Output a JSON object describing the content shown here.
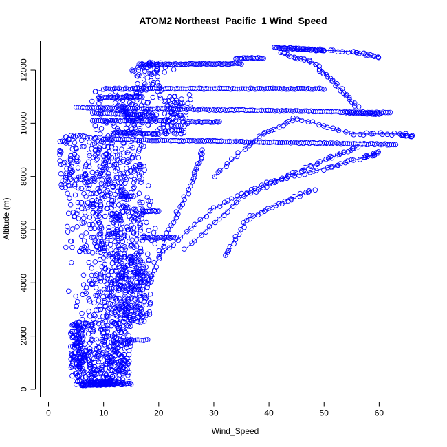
{
  "chart_data": {
    "type": "scatter",
    "title": "ATOM2 Northeast_Pacific_1 Wind_Speed",
    "xlabel": "Wind_Speed",
    "ylabel": "Altitude (m)",
    "xlim": [
      -1.5,
      68.5
    ],
    "ylim": [
      -300,
      13100
    ],
    "x_ticks": [
      0,
      10,
      20,
      30,
      40,
      50,
      60
    ],
    "y_ticks": [
      0,
      2000,
      4000,
      6000,
      8000,
      10000,
      12000
    ],
    "grid": false,
    "marker": "open-circle",
    "color": "#0000ff",
    "series": [
      {
        "name": "",
        "clusters": [
          {
            "x_range": [
              5,
              15
            ],
            "y_range": [
              150,
              300
            ],
            "density": 90
          },
          {
            "x_range": [
              4,
              15
            ],
            "y_range": [
              300,
              2500
            ],
            "density": 420
          },
          {
            "x_range": [
              2,
              19
            ],
            "y_range": [
              2500,
              5000
            ],
            "density": 380
          },
          {
            "x_range": [
              3,
              20
            ],
            "y_range": [
              5000,
              7500
            ],
            "density": 300
          },
          {
            "x_range": [
              2,
              24
            ],
            "y_range": [
              7500,
              9600
            ],
            "density": 280
          },
          {
            "x_range": [
              6,
              30
            ],
            "y_range": [
              9600,
              11200
            ],
            "density": 200
          },
          {
            "x_range": [
              15,
              35
            ],
            "y_range": [
              11200,
              12300
            ],
            "density": 60
          }
        ],
        "lines": [
          {
            "x": [
              5,
              62
            ],
            "y": [
              10600,
              10400
            ],
            "n": 140
          },
          {
            "x": [
              10,
              63
            ],
            "y": [
              9400,
              9200
            ],
            "n": 140
          },
          {
            "x": [
              10,
              50
            ],
            "y": [
              11300,
              11300
            ],
            "n": 100
          },
          {
            "x": [
              41,
              50
            ],
            "y": [
              12850,
              12750
            ],
            "n": 40
          },
          {
            "x": [
              9,
              17
            ],
            "y": [
              10950,
              11000
            ],
            "n": 30
          },
          {
            "x": [
              17,
              35
            ],
            "y": [
              12200,
              12250
            ],
            "n": 60
          },
          {
            "x": [
              34,
              39
            ],
            "y": [
              12450,
              12450
            ],
            "n": 20
          },
          {
            "x": [
              8,
              22
            ],
            "y": [
              10100,
              10100
            ],
            "n": 40
          },
          {
            "x": [
              12,
              20
            ],
            "y": [
              9650,
              9600
            ],
            "n": 30
          },
          {
            "x": [
              8,
              19
            ],
            "y": [
              10400,
              10300
            ],
            "n": 30
          },
          {
            "x": [
              26,
              31
            ],
            "y": [
              10050,
              10050
            ],
            "n": 20
          },
          {
            "x": [
              54,
              60
            ],
            "y": [
              10400,
              10350
            ],
            "n": 20
          },
          {
            "x": [
              13,
              15
            ],
            "y": [
              7250,
              7250
            ],
            "n": 10
          },
          {
            "x": [
              17,
              23
            ],
            "y": [
              5700,
              5700
            ],
            "n": 20
          },
          {
            "x": [
              17,
              20
            ],
            "y": [
              6700,
              6700
            ],
            "n": 12
          },
          {
            "x": [
              13,
              18
            ],
            "y": [
              1850,
              1850
            ],
            "n": 15
          },
          {
            "x": [
              6,
              15
            ],
            "y": [
              150,
              200
            ],
            "n": 40
          }
        ],
        "curves": [
          {
            "x": [
              20,
              30,
              40,
              50,
              57,
              60
            ],
            "y": [
              5000,
              6800,
              7800,
              8300,
              8700,
              8900
            ],
            "n": 60
          },
          {
            "x": [
              25,
              35,
              43,
              50,
              56
            ],
            "y": [
              5300,
              7200,
              8000,
              8600,
              9100
            ],
            "n": 50
          },
          {
            "x": [
              30,
              38,
              45,
              55,
              64,
              66
            ],
            "y": [
              8000,
              9500,
              10200,
              9600,
              9600,
              9500
            ],
            "n": 60
          },
          {
            "x": [
              42,
              48,
              52,
              56
            ],
            "y": [
              12650,
              12300,
              11500,
              10600
            ],
            "n": 40
          },
          {
            "x": [
              45,
              55,
              60
            ],
            "y": [
              12800,
              12700,
              12500
            ],
            "n": 25
          },
          {
            "x": [
              18,
              22,
              26,
              28
            ],
            "y": [
              4000,
              6000,
              7800,
              9000
            ],
            "n": 40
          },
          {
            "x": [
              32,
              36,
              42,
              48
            ],
            "y": [
              5000,
              6400,
              7000,
              7500
            ],
            "n": 35
          }
        ]
      }
    ]
  }
}
